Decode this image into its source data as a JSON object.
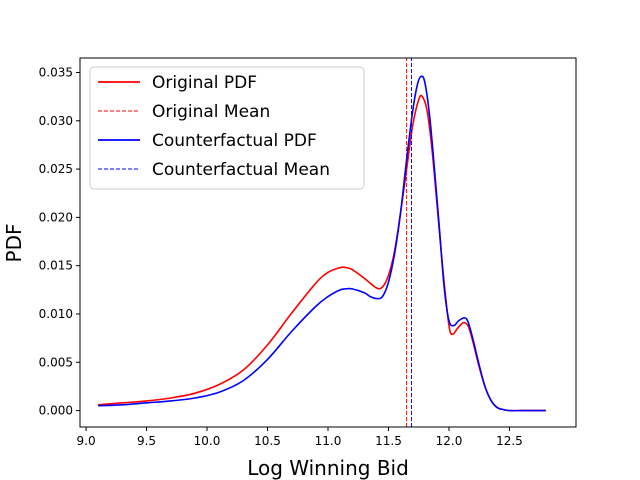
{
  "chart_data": {
    "type": "line",
    "title": "",
    "xlabel": "Log Winning Bid",
    "ylabel": "PDF",
    "xlim": [
      8.95,
      13.05
    ],
    "ylim": [
      -0.0017,
      0.0365
    ],
    "xticks": [
      9.0,
      9.5,
      10.0,
      10.5,
      11.0,
      11.5,
      12.0,
      12.5
    ],
    "xtick_labels": [
      "9.0",
      "9.5",
      "10.0",
      "10.5",
      "11.0",
      "11.5",
      "12.0",
      "12.5"
    ],
    "yticks": [
      0.0,
      0.005,
      0.01,
      0.015,
      0.02,
      0.025,
      0.03,
      0.035
    ],
    "ytick_labels": [
      "0.000",
      "0.005",
      "0.010",
      "0.015",
      "0.020",
      "0.025",
      "0.030",
      "0.035"
    ],
    "grid": false,
    "legend_position": "top-left",
    "series": [
      {
        "name": "Original PDF",
        "color": "#ff0000",
        "style": "solid",
        "x": [
          9.1,
          9.3,
          9.5,
          9.7,
          9.9,
          10.1,
          10.3,
          10.5,
          10.7,
          10.9,
          11.0,
          11.1,
          11.15,
          11.2,
          11.3,
          11.4,
          11.45,
          11.5,
          11.55,
          11.6,
          11.65,
          11.7,
          11.75,
          11.78,
          11.82,
          11.86,
          11.9,
          11.95,
          12.0,
          12.03,
          12.07,
          12.12,
          12.16,
          12.2,
          12.25,
          12.3,
          12.35,
          12.4,
          12.45,
          12.5,
          12.6,
          12.8
        ],
        "y": [
          0.0006,
          0.0008,
          0.001,
          0.0013,
          0.0018,
          0.0027,
          0.0042,
          0.0068,
          0.0101,
          0.0132,
          0.0143,
          0.0148,
          0.0148,
          0.0146,
          0.0137,
          0.0127,
          0.0128,
          0.014,
          0.0165,
          0.0205,
          0.025,
          0.0295,
          0.0322,
          0.0325,
          0.031,
          0.027,
          0.0215,
          0.0145,
          0.0088,
          0.0079,
          0.0085,
          0.0091,
          0.0087,
          0.007,
          0.0045,
          0.0024,
          0.001,
          0.0003,
          0.0001,
          0.0,
          0.0,
          0.0
        ]
      },
      {
        "name": "Original Mean",
        "color": "#ff0000",
        "style": "dashed",
        "x": [
          11.65,
          11.65
        ],
        "y": [
          -0.0017,
          0.0365
        ]
      },
      {
        "name": "Counterfactual PDF",
        "color": "#0000ff",
        "style": "solid",
        "x": [
          9.1,
          9.3,
          9.5,
          9.7,
          9.9,
          10.1,
          10.3,
          10.5,
          10.7,
          10.9,
          11.0,
          11.1,
          11.15,
          11.2,
          11.3,
          11.35,
          11.4,
          11.45,
          11.5,
          11.55,
          11.6,
          11.65,
          11.7,
          11.74,
          11.77,
          11.8,
          11.84,
          11.88,
          11.92,
          11.96,
          12.0,
          12.04,
          12.08,
          12.13,
          12.16,
          12.2,
          12.25,
          12.3,
          12.35,
          12.4,
          12.45,
          12.5,
          12.6,
          12.8
        ],
        "y": [
          0.0005,
          0.0006,
          0.0008,
          0.001,
          0.0013,
          0.0019,
          0.0031,
          0.0053,
          0.0082,
          0.0108,
          0.0118,
          0.0125,
          0.0126,
          0.0126,
          0.0122,
          0.0118,
          0.0116,
          0.0118,
          0.0133,
          0.0162,
          0.0205,
          0.026,
          0.031,
          0.0338,
          0.0346,
          0.034,
          0.0305,
          0.025,
          0.019,
          0.0128,
          0.0093,
          0.0088,
          0.0093,
          0.0096,
          0.0091,
          0.0073,
          0.0047,
          0.0024,
          0.001,
          0.0003,
          0.0001,
          0.0,
          0.0,
          0.0
        ]
      },
      {
        "name": "Counterfactual Mean",
        "color": "#0000ff",
        "style": "dashed",
        "x": [
          11.69,
          11.69
        ],
        "y": [
          -0.0017,
          0.0365
        ]
      }
    ]
  }
}
